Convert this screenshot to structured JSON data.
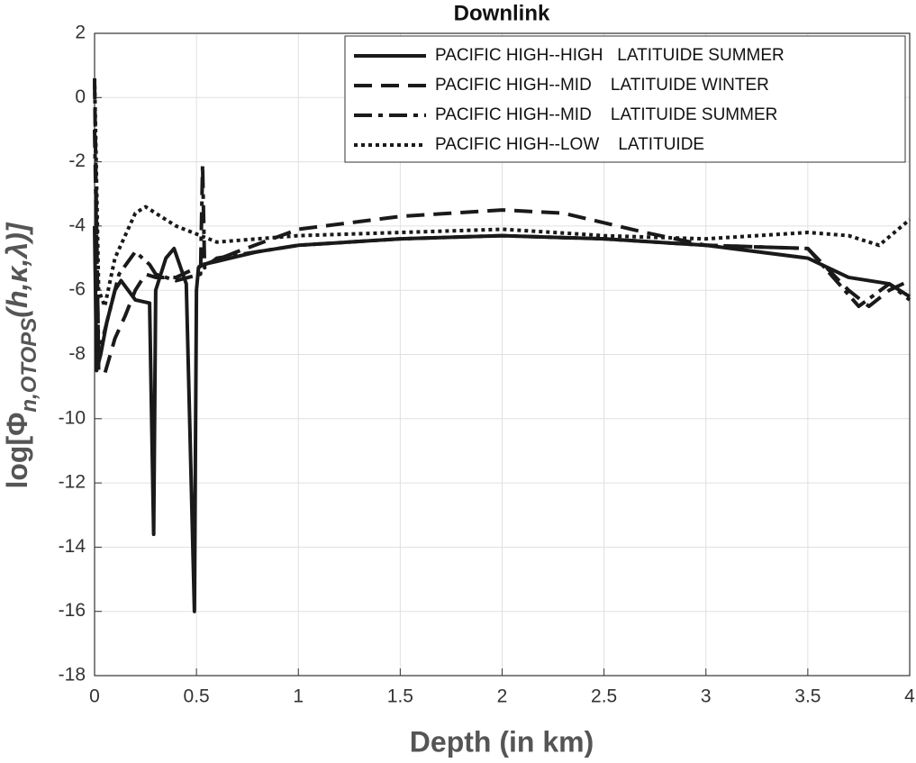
{
  "chart_data": {
    "type": "line",
    "title": "Downlink",
    "xlabel": "Depth (in km)",
    "ylabel": [
      "log[Φ",
      "n,OTOPS",
      "(h,κ,λ)]"
    ],
    "xlim": [
      0,
      4
    ],
    "xticks": [
      0,
      0.5,
      1,
      1.5,
      2,
      2.5,
      3,
      3.5,
      4
    ],
    "ylim": [
      -18,
      2
    ],
    "yticks": [
      -18,
      -16,
      -14,
      -12,
      -10,
      -8,
      -6,
      -4,
      -2,
      0,
      2
    ],
    "grid": true,
    "legend": "upper right",
    "series": [
      {
        "name": "PACIFIC HIGH--HIGH   LATITUIDE SUMMER",
        "color": "#1a1a1a",
        "style": "solid",
        "x": [
          0,
          0.01,
          0.03,
          0.06,
          0.1,
          0.13,
          0.2,
          0.27,
          0.29,
          0.3,
          0.35,
          0.39,
          0.45,
          0.49,
          0.5,
          0.51,
          0.53,
          0.6,
          0.8,
          1,
          1.5,
          2,
          2.5,
          3,
          3.5,
          3.7,
          3.9,
          4
        ],
        "values": [
          -4,
          -8.5,
          -8,
          -7,
          -6,
          -5.7,
          -6.3,
          -6.4,
          -13.6,
          -6,
          -5,
          -4.7,
          -5.8,
          -16,
          -6,
          -5.3,
          -5.2,
          -5.1,
          -4.8,
          -4.6,
          -4.4,
          -4.3,
          -4.4,
          -4.6,
          -5,
          -5.6,
          -5.8,
          -6.2
        ]
      },
      {
        "name": "PACIFIC HIGH--MID    LATITUIDE WINTER",
        "color": "#1a1a1a",
        "style": "dashed",
        "x": [
          0,
          0.02,
          0.05,
          0.1,
          0.15,
          0.2,
          0.25,
          0.3,
          0.4,
          0.5,
          0.7,
          1,
          1.5,
          2,
          2.3,
          2.7,
          3,
          3.5,
          3.7,
          3.8,
          3.9,
          4
        ],
        "values": [
          0.5,
          -8.5,
          -8.6,
          -7.5,
          -6.8,
          -6,
          -5.5,
          -5.6,
          -5.6,
          -5.3,
          -4.8,
          -4.1,
          -3.7,
          -3.5,
          -3.6,
          -4.2,
          -4.6,
          -4.7,
          -6,
          -6.5,
          -6,
          -5.7
        ]
      },
      {
        "name": "PACIFIC HIGH--MID    LATITUIDE SUMMER",
        "color": "#1a1a1a",
        "style": "dashdot",
        "x": [
          0,
          0.02,
          0.06,
          0.12,
          0.2,
          0.27,
          0.3,
          0.4,
          0.52,
          0.53,
          0.54,
          0.6,
          1,
          1.5,
          2,
          2.5,
          3,
          3.5,
          3.75,
          3.9,
          4
        ],
        "values": [
          -1,
          -8,
          -7,
          -5.5,
          -4.8,
          -5.2,
          -5.5,
          -5.7,
          -5.5,
          -2.1,
          -5.3,
          -5,
          -4.6,
          -4.4,
          -4.3,
          -4.4,
          -4.6,
          -4.7,
          -6.5,
          -5.8,
          -6.3
        ]
      },
      {
        "name": "PACIFIC HIGH--LOW    LATITUIDE",
        "color": "#1a1a1a",
        "style": "dotted",
        "x": [
          0,
          0.02,
          0.05,
          0.1,
          0.2,
          0.25,
          0.3,
          0.4,
          0.6,
          1,
          1.5,
          2,
          2.5,
          3,
          3.5,
          3.7,
          3.85,
          4
        ],
        "values": [
          0.6,
          -6,
          -6.5,
          -5,
          -3.6,
          -3.4,
          -3.6,
          -4,
          -4.5,
          -4.3,
          -4.2,
          -4.1,
          -4.3,
          -4.4,
          -4.2,
          -4.3,
          -4.6,
          -3.8
        ]
      }
    ]
  }
}
